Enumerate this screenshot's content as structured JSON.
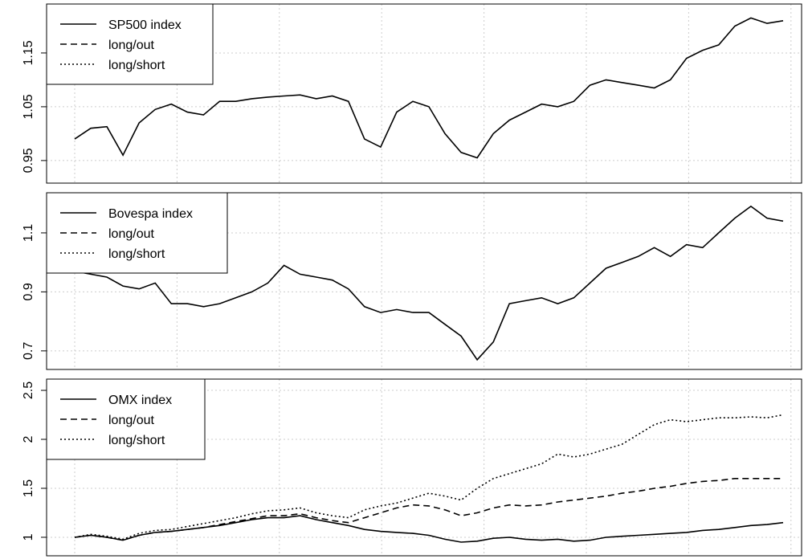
{
  "chart_data": [
    {
      "type": "line",
      "categories": [
        null,
        null,
        null,
        null,
        null,
        null,
        null,
        null,
        null,
        null,
        null,
        null,
        null,
        null,
        null,
        null,
        null,
        null,
        null,
        null,
        null,
        null,
        null,
        null,
        null,
        null,
        null,
        null,
        null,
        null,
        null,
        null,
        null,
        null,
        null,
        null,
        null,
        null,
        null,
        null,
        null,
        null,
        null,
        null,
        null
      ],
      "ylim": [
        0.908,
        1.241
      ],
      "yticks": [
        0.95,
        1.05,
        1.15
      ],
      "grid": true,
      "legend": [
        {
          "label": "SP500 index",
          "dash": "solid"
        },
        {
          "label": "long/out",
          "dash": "dashed"
        },
        {
          "label": "long/short",
          "dash": "dotted"
        }
      ],
      "series": [
        {
          "color": "#000000",
          "dash": "solid",
          "values": [
            0.99,
            1.01,
            1.013,
            0.96,
            1.02,
            1.045,
            1.055,
            1.04,
            1.035,
            1.06,
            1.06,
            1.065,
            1.068,
            1.07,
            1.072,
            1.065,
            1.07,
            1.06,
            0.99,
            0.975,
            1.04,
            1.06,
            1.05,
            1.0,
            0.965,
            0.955,
            1.0,
            1.025,
            1.04,
            1.055,
            1.05,
            1.06,
            1.09,
            1.1,
            1.095,
            1.09,
            1.085,
            1.1,
            1.14,
            1.155,
            1.165,
            1.2,
            1.215,
            1.205,
            1.21
          ]
        }
      ]
    },
    {
      "type": "line",
      "categories": [
        null,
        null,
        null,
        null,
        null,
        null,
        null,
        null,
        null,
        null,
        null,
        null,
        null,
        null,
        null,
        null,
        null,
        null,
        null,
        null,
        null,
        null,
        null,
        null,
        null,
        null,
        null,
        null,
        null,
        null,
        null,
        null,
        null,
        null,
        null,
        null,
        null,
        null,
        null,
        null,
        null,
        null,
        null,
        null,
        null
      ],
      "ylim": [
        0.637,
        1.236
      ],
      "yticks": [
        0.7,
        0.9,
        1.1
      ],
      "grid": true,
      "legend": [
        {
          "label": "Bovespa index",
          "dash": "solid"
        },
        {
          "label": "long/out",
          "dash": "dashed"
        },
        {
          "label": "long/short",
          "dash": "dotted"
        }
      ],
      "series": [
        {
          "color": "#000000",
          "dash": "solid",
          "values": [
            0.97,
            0.96,
            0.95,
            0.92,
            0.91,
            0.93,
            0.86,
            0.86,
            0.85,
            0.86,
            0.88,
            0.9,
            0.93,
            0.99,
            0.96,
            0.95,
            0.94,
            0.91,
            0.85,
            0.83,
            0.84,
            0.83,
            0.83,
            0.79,
            0.75,
            0.67,
            0.73,
            0.86,
            0.87,
            0.88,
            0.86,
            0.88,
            0.93,
            0.98,
            1.0,
            1.02,
            1.05,
            1.02,
            1.06,
            1.05,
            1.1,
            1.15,
            1.19,
            1.15,
            1.14
          ]
        }
      ]
    },
    {
      "type": "line",
      "categories": [
        null,
        null,
        null,
        null,
        null,
        null,
        null,
        null,
        null,
        null,
        null,
        null,
        null,
        null,
        null,
        null,
        null,
        null,
        null,
        null,
        null,
        null,
        null,
        null,
        null,
        null,
        null,
        null,
        null,
        null,
        null,
        null,
        null,
        null,
        null,
        null,
        null,
        null,
        null,
        null,
        null,
        null,
        null,
        null,
        null
      ],
      "ylim": [
        0.811,
        2.615
      ],
      "yticks": [
        1.0,
        1.5,
        2.0,
        2.5
      ],
      "grid": true,
      "legend": [
        {
          "label": "OMX index",
          "dash": "solid"
        },
        {
          "label": "long/out",
          "dash": "dashed"
        },
        {
          "label": "long/short",
          "dash": "dotted"
        }
      ],
      "series": [
        {
          "color": "#000000",
          "dash": "solid",
          "values": [
            1.0,
            1.02,
            1.0,
            0.97,
            1.02,
            1.05,
            1.06,
            1.08,
            1.1,
            1.12,
            1.15,
            1.18,
            1.2,
            1.2,
            1.22,
            1.18,
            1.15,
            1.12,
            1.08,
            1.06,
            1.05,
            1.04,
            1.02,
            0.98,
            0.95,
            0.96,
            0.99,
            1.0,
            0.98,
            0.97,
            0.98,
            0.96,
            0.97,
            1.0,
            1.01,
            1.02,
            1.03,
            1.04,
            1.05,
            1.07,
            1.08,
            1.1,
            1.12,
            1.13,
            1.15
          ]
        },
        {
          "color": "#000000",
          "dash": "dashed",
          "values": [
            1.0,
            1.02,
            1.0,
            0.97,
            1.02,
            1.05,
            1.06,
            1.08,
            1.1,
            1.13,
            1.16,
            1.19,
            1.22,
            1.22,
            1.24,
            1.2,
            1.17,
            1.15,
            1.2,
            1.25,
            1.3,
            1.33,
            1.32,
            1.28,
            1.22,
            1.25,
            1.3,
            1.33,
            1.32,
            1.33,
            1.36,
            1.38,
            1.4,
            1.42,
            1.45,
            1.47,
            1.5,
            1.52,
            1.55,
            1.57,
            1.58,
            1.6,
            1.6,
            1.6,
            1.6
          ]
        },
        {
          "color": "#000000",
          "dash": "dotted",
          "values": [
            1.0,
            1.03,
            1.01,
            0.98,
            1.04,
            1.07,
            1.08,
            1.11,
            1.14,
            1.17,
            1.2,
            1.24,
            1.27,
            1.28,
            1.3,
            1.25,
            1.22,
            1.2,
            1.28,
            1.32,
            1.35,
            1.4,
            1.45,
            1.42,
            1.38,
            1.5,
            1.6,
            1.65,
            1.7,
            1.75,
            1.85,
            1.82,
            1.85,
            1.9,
            1.95,
            2.05,
            2.15,
            2.2,
            2.18,
            2.2,
            2.22,
            2.22,
            2.23,
            2.22,
            2.25
          ]
        }
      ]
    }
  ]
}
